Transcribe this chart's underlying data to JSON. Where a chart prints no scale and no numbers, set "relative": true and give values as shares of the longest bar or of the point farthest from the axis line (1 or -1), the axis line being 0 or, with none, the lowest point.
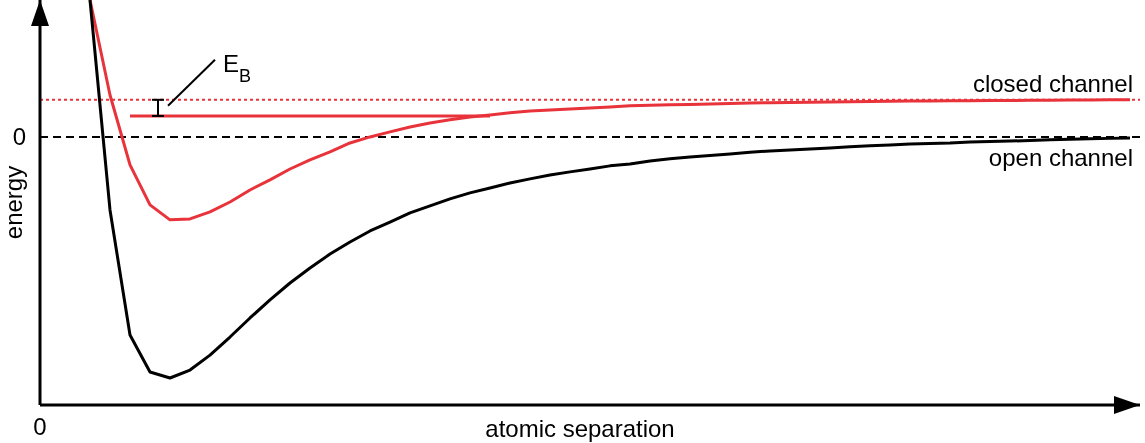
{
  "chart_data": {
    "type": "line",
    "relative": true,
    "xlabel": "atomic separation",
    "ylabel": "energy",
    "marker": "none",
    "categories": [
      null,
      null,
      null,
      null,
      null,
      null,
      null,
      null,
      null,
      null,
      null,
      null,
      null,
      null,
      null,
      null,
      null,
      null,
      null,
      null,
      null,
      null,
      null,
      null,
      null,
      null,
      null,
      null,
      null,
      null,
      null,
      null,
      null,
      null,
      null,
      null,
      null,
      null,
      null,
      null,
      null,
      null,
      null,
      null,
      null,
      null,
      null,
      null,
      null,
      null,
      null,
      null,
      null,
      null,
      null
    ],
    "series": [
      {
        "name": "closed channel",
        "color": "#e8333a",
        "values": [
          null,
          null,
          0.568,
          0.174,
          -0.116,
          -0.282,
          -0.344,
          -0.34,
          -0.311,
          -0.27,
          -0.22,
          -0.178,
          -0.133,
          -0.095,
          -0.062,
          -0.025,
          0,
          0.021,
          0.041,
          0.058,
          0.071,
          0.083,
          0.091,
          0.1,
          0.108,
          0.112,
          0.116,
          0.12,
          0.124,
          0.129,
          0.131,
          0.133,
          0.135,
          0.137,
          0.139,
          0.141,
          0.142,
          0.143,
          0.144,
          0.145,
          0.146,
          0.147,
          0.148,
          0.149,
          0.149,
          0.15,
          0.15,
          0.151,
          0.151,
          0.152,
          0.152,
          0.153,
          0.153,
          0.154,
          0.154
        ]
      },
      {
        "name": "open channel",
        "color": "#000000",
        "values": [
          null,
          null,
          0.568,
          -0.303,
          -0.822,
          -0.975,
          -1,
          -0.967,
          -0.905,
          -0.83,
          -0.751,
          -0.676,
          -0.606,
          -0.544,
          -0.486,
          -0.436,
          -0.39,
          -0.353,
          -0.315,
          -0.286,
          -0.257,
          -0.232,
          -0.212,
          -0.191,
          -0.174,
          -0.158,
          -0.145,
          -0.133,
          -0.12,
          -0.112,
          -0.1,
          -0.091,
          -0.083,
          -0.077,
          -0.071,
          -0.064,
          -0.058,
          -0.054,
          -0.05,
          -0.046,
          -0.041,
          -0.037,
          -0.033,
          -0.029,
          -0.027,
          -0.025,
          -0.021,
          -0.019,
          -0.017,
          -0.015,
          -0.012,
          -0.01,
          -0.008,
          -0.006,
          -0.004
        ]
      },
      {
        "color": "#e8333a",
        "values": [
          null,
          null,
          null,
          null,
          0.087,
          0.087,
          0.087,
          0.087,
          0.087,
          0.087,
          0.087,
          0.087,
          0.087,
          0.087,
          0.087,
          0.087,
          0.087,
          0.087,
          0.087,
          0.087,
          0.087,
          0.087,
          0.087,
          null,
          null,
          null,
          null,
          null,
          null,
          null,
          null,
          null,
          null,
          null,
          null,
          null,
          null,
          null,
          null,
          null,
          null,
          null,
          null,
          null,
          null,
          null,
          null,
          null,
          null,
          null,
          null,
          null,
          null,
          null,
          null
        ]
      }
    ],
    "ref_lines": [
      {
        "axis": "y",
        "value": 0,
        "color": "#000000",
        "line_style": "dashed"
      },
      {
        "axis": "y",
        "value": 0.154,
        "color": "#e8333a",
        "line_style": "dotted"
      }
    ],
    "annotations": [
      "E$_{B}$",
      "0",
      "0"
    ]
  }
}
